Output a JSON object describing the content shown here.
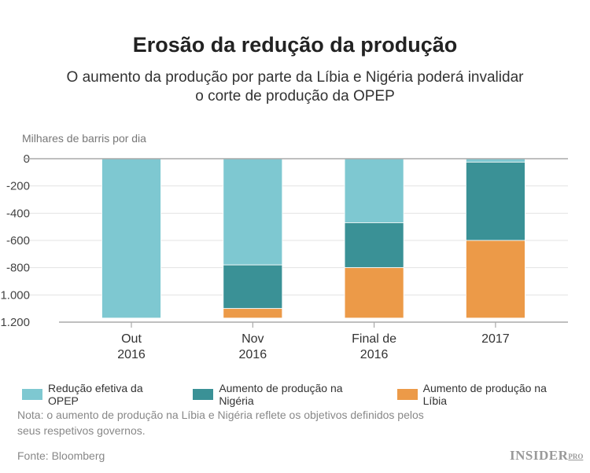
{
  "chart_data": {
    "type": "bar",
    "stacked": true,
    "title": "Erosão da redução da produção",
    "subtitle": "O aumento da produção por parte da Líbia e Nigéria poderá invalidar o corte de produção da OPEP",
    "subtitle_lines": [
      "O aumento da produção por parte da Líbia e Nigéria poderá invalidar",
      "o corte de produção da OPEP"
    ],
    "ylabel": "Milhares de barris por dia",
    "ylim": [
      -1200,
      0
    ],
    "yticks": [
      0,
      -200,
      -400,
      -600,
      -800,
      -1000,
      -1200
    ],
    "ytick_labels": [
      "0",
      "-200",
      "-400",
      "-600",
      "-800",
      "-1.000",
      "-1.200"
    ],
    "categories": [
      [
        "Out",
        "2016"
      ],
      [
        "Nov",
        "2016"
      ],
      [
        "Final de",
        "2016"
      ],
      [
        "2017"
      ]
    ],
    "grid": true,
    "legend_position": "bottom",
    "series": [
      {
        "name": "Redução efetiva da OPEP",
        "color": "#7ec8d1",
        "values": [
          -1170,
          -780,
          -470,
          -25
        ]
      },
      {
        "name": "Aumento de produção na Nigéria",
        "color": "#3a9196",
        "values": [
          0,
          -320,
          -330,
          -575
        ]
      },
      {
        "name": "Aumento de produção na Líbia",
        "color": "#ec9a48",
        "values": [
          0,
          -70,
          -370,
          -570
        ]
      }
    ]
  },
  "note": "Nota: o aumento de produção na Líbia e Nigéria reflete os objetivos definidos pelos seus respetivos governos.",
  "note_lines": [
    "Nota: o aumento de produção na Líbia e Nigéria reflete os objetivos definidos pelos",
    "seus respetivos governos."
  ],
  "source": "Fonte: Bloomberg",
  "logo": {
    "main": "INSIDER",
    "sub": "PRO"
  }
}
